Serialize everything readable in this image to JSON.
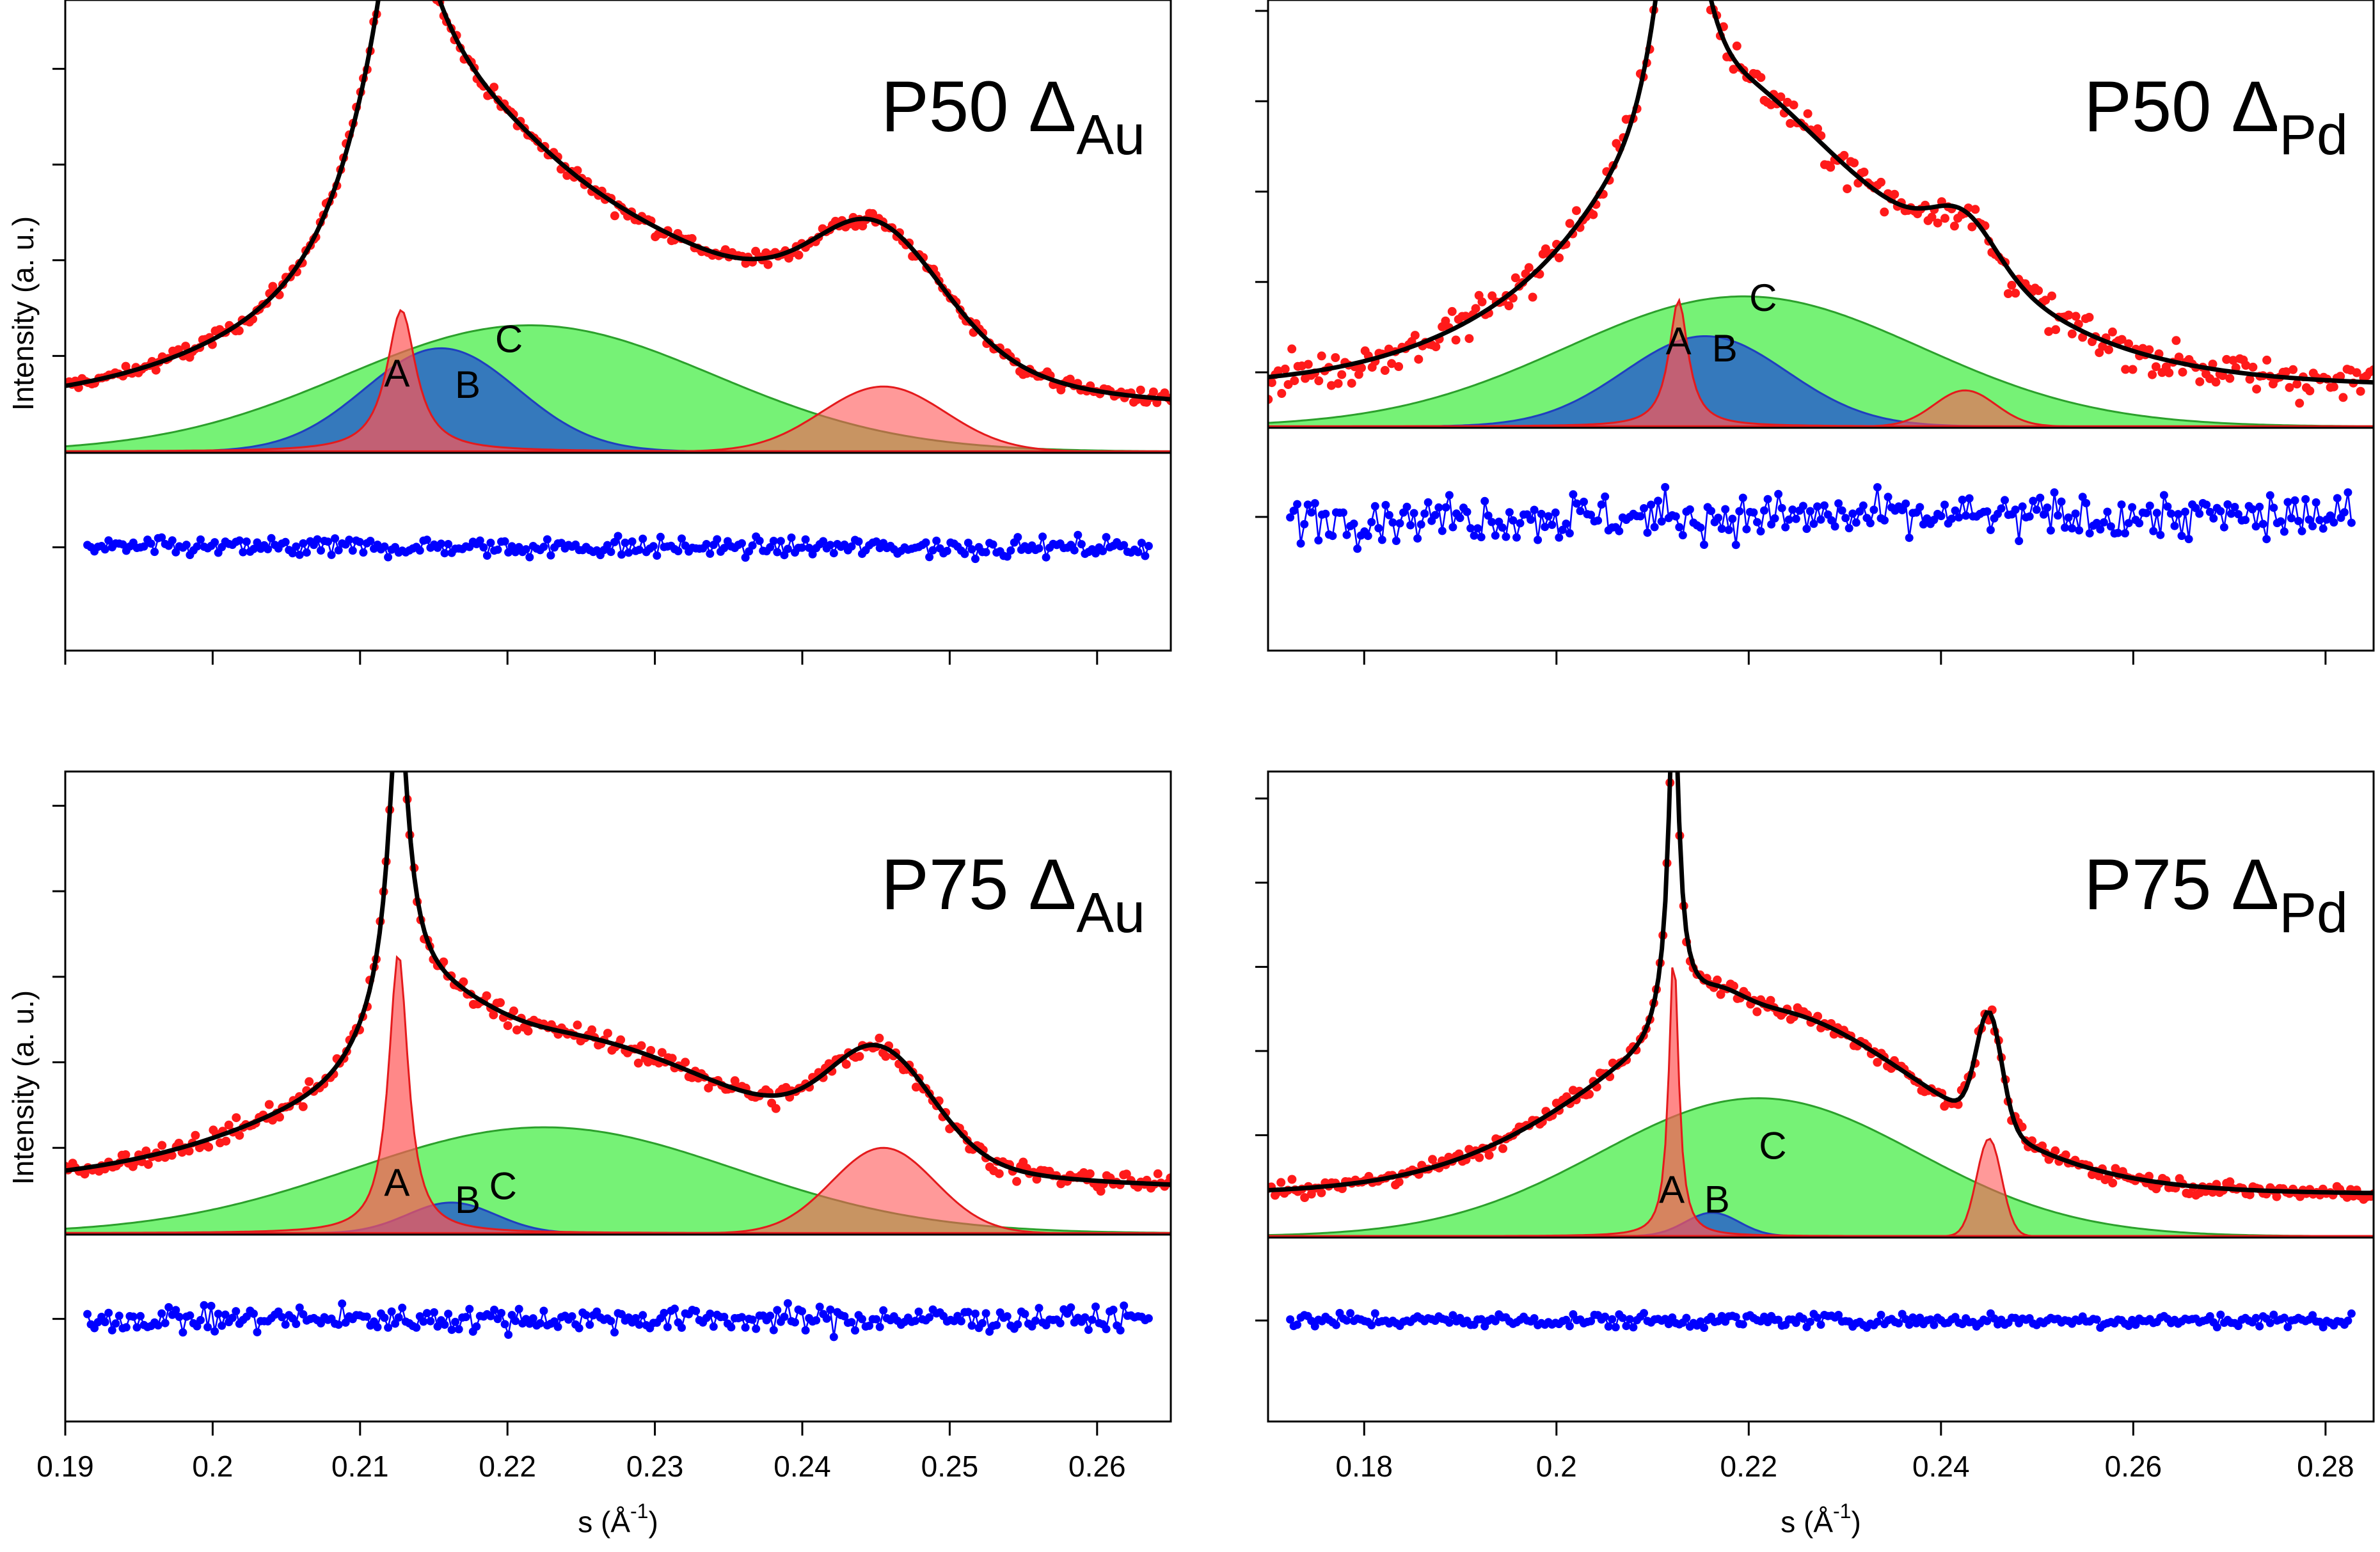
{
  "figure": {
    "ylabel": "Intensity (a. u.)",
    "xlabel_main": "s (Å",
    "xlabel_sup": "-1",
    "xlabel_close": ")"
  },
  "chart_data": [
    {
      "type": "line",
      "id": "p50-au",
      "title_main": "P50 Δ",
      "title_sub": "Au",
      "ylabel": "Intensity (a. u.)",
      "xlabel": "",
      "xlim": [
        0.19,
        0.265
      ],
      "ylim": [
        -0.52,
        1.18
      ],
      "xticks": [
        0.19,
        0.2,
        0.21,
        0.22,
        0.23,
        0.24,
        0.25,
        0.26
      ],
      "xtick_labels": [],
      "yticks": [
        -0.25,
        0.25,
        0.5,
        0.75,
        1.0
      ],
      "baseline": 0,
      "residual_offset": -0.25,
      "peaks": [
        {
          "label": "A",
          "shape": "lorentzian",
          "center": 0.2128,
          "width": 0.0012,
          "amp": 0.37,
          "color": "#ff5555",
          "line": "#e41a1c",
          "alpha": 0.7
        },
        {
          "label": "B",
          "shape": "gaussian",
          "center": 0.2155,
          "width": 0.0052,
          "amp": 0.27,
          "color": "#2f6bc4",
          "line": "#1f3fbf",
          "alpha": 0.9
        },
        {
          "label": "C",
          "shape": "gaussian",
          "center": 0.2215,
          "width": 0.0125,
          "amp": 0.33,
          "color": "#5ef05e",
          "line": "#2ca02c",
          "alpha": 0.85
        },
        {
          "label": "",
          "shape": "gaussian",
          "center": 0.2455,
          "width": 0.0042,
          "amp": 0.17,
          "color": "#ff5555",
          "line": "#e41a1c",
          "alpha": 0.6
        }
      ],
      "fit_extra": [
        {
          "center": 0.2128,
          "width": 0.0028,
          "amp": 0.42
        },
        {
          "center": 0.2215,
          "width": 0.018,
          "amp": 0.22
        },
        {
          "center": 0.2445,
          "width": 0.0065,
          "amp": 0.19
        }
      ],
      "background": 0.1,
      "noise": 0.018,
      "resid_noise": 0.02,
      "peak_labels": [
        {
          "text": "A",
          "x": 0.2125,
          "y": 0.17
        },
        {
          "text": "B",
          "x": 0.2173,
          "y": 0.14
        },
        {
          "text": "C",
          "x": 0.2201,
          "y": 0.26
        }
      ]
    },
    {
      "type": "line",
      "id": "p50-pd",
      "title_main": "P50 Δ",
      "title_sub": "Pd",
      "ylabel": "",
      "xlabel": "",
      "xlim": [
        0.17,
        0.285
      ],
      "ylim": [
        -0.62,
        1.18
      ],
      "xticks": [
        0.18,
        0.2,
        0.22,
        0.24,
        0.26,
        0.28
      ],
      "xtick_labels": [],
      "yticks": [
        -0.25,
        0.15,
        0.4,
        0.65,
        0.9,
        1.15
      ],
      "baseline": 0,
      "residual_offset": -0.25,
      "peaks": [
        {
          "label": "A",
          "shape": "lorentzian",
          "center": 0.2127,
          "width": 0.0012,
          "amp": 0.35,
          "color": "#ff5555",
          "line": "#e41a1c",
          "alpha": 0.7
        },
        {
          "label": "B",
          "shape": "gaussian",
          "center": 0.2155,
          "width": 0.0085,
          "amp": 0.25,
          "color": "#2f6bc4",
          "line": "#1f3fbf",
          "alpha": 0.9
        },
        {
          "label": "C",
          "shape": "gaussian",
          "center": 0.2195,
          "width": 0.0185,
          "amp": 0.36,
          "color": "#5ef05e",
          "line": "#2ca02c",
          "alpha": 0.85
        },
        {
          "label": "",
          "shape": "gaussian",
          "center": 0.2425,
          "width": 0.0032,
          "amp": 0.1,
          "color": "#ff5555",
          "line": "#e41a1c",
          "alpha": 0.6
        }
      ],
      "fit_extra": [
        {
          "center": 0.2128,
          "width": 0.0025,
          "amp": 0.55
        },
        {
          "center": 0.225,
          "width": 0.022,
          "amp": 0.25
        },
        {
          "center": 0.2425,
          "width": 0.006,
          "amp": 0.06
        }
      ],
      "background": 0.1,
      "noise": 0.045,
      "resid_noise": 0.055,
      "peak_labels": [
        {
          "text": "A",
          "x": 0.2127,
          "y": 0.2
        },
        {
          "text": "B",
          "x": 0.2175,
          "y": 0.18
        },
        {
          "text": "C",
          "x": 0.2215,
          "y": 0.32
        }
      ]
    },
    {
      "type": "line",
      "id": "p75-au",
      "title_main": "P75 Δ",
      "title_sub": "Au",
      "ylabel": "Intensity (a. u.)",
      "xlabel": "s (Å⁻¹)",
      "xlim": [
        0.19,
        0.265
      ],
      "ylim": [
        -0.55,
        1.35
      ],
      "xticks": [
        0.19,
        0.2,
        0.21,
        0.22,
        0.23,
        0.24,
        0.25,
        0.26
      ],
      "xtick_labels": [
        "0.19",
        "0.2",
        "0.21",
        "0.22",
        "0.23",
        "0.24",
        "0.25",
        "0.26"
      ],
      "yticks": [
        -0.25,
        0.25,
        0.5,
        0.75,
        1.0,
        1.25
      ],
      "baseline": 0,
      "residual_offset": -0.25,
      "peaks": [
        {
          "label": "A",
          "shape": "lorentzian",
          "center": 0.2126,
          "width": 0.0008,
          "amp": 0.82,
          "color": "#ff5555",
          "line": "#e41a1c",
          "alpha": 0.7
        },
        {
          "label": "B",
          "shape": "gaussian",
          "center": 0.2162,
          "width": 0.003,
          "amp": 0.09,
          "color": "#2f6bc4",
          "line": "#1f3fbf",
          "alpha": 0.9
        },
        {
          "label": "C",
          "shape": "gaussian",
          "center": 0.2225,
          "width": 0.013,
          "amp": 0.31,
          "color": "#5ef05e",
          "line": "#2ca02c",
          "alpha": 0.85
        },
        {
          "label": "",
          "shape": "gaussian",
          "center": 0.2455,
          "width": 0.0035,
          "amp": 0.25,
          "color": "#ff5555",
          "line": "#e41a1c",
          "alpha": 0.6
        }
      ],
      "fit_extra": [
        {
          "center": 0.2128,
          "width": 0.0025,
          "amp": 0.2
        },
        {
          "center": 0.22,
          "width": 0.02,
          "amp": 0.15
        },
        {
          "center": 0.2445,
          "width": 0.004,
          "amp": 0.05
        }
      ],
      "background": 0.12,
      "noise": 0.025,
      "resid_noise": 0.03,
      "peak_labels": [
        {
          "text": "A",
          "x": 0.2125,
          "y": 0.11
        },
        {
          "text": "B",
          "x": 0.2173,
          "y": 0.06
        },
        {
          "text": "C",
          "x": 0.2197,
          "y": 0.1
        }
      ]
    },
    {
      "type": "line",
      "id": "p75-pd",
      "title_main": "P75 Δ",
      "title_sub": "Pd",
      "ylabel": "",
      "xlabel": "s (Å⁻¹)",
      "xlim": [
        0.17,
        0.285
      ],
      "ylim": [
        -0.55,
        1.38
      ],
      "xticks": [
        0.18,
        0.2,
        0.22,
        0.24,
        0.26,
        0.28
      ],
      "xtick_labels": [
        "0.18",
        "0.2",
        "0.22",
        "0.24",
        "0.26",
        "0.28"
      ],
      "yticks": [
        -0.25,
        0.3,
        0.55,
        0.8,
        1.05,
        1.3
      ],
      "baseline": 0,
      "residual_offset": -0.25,
      "peaks": [
        {
          "label": "A",
          "shape": "lorentzian",
          "center": 0.2122,
          "width": 0.0006,
          "amp": 0.85,
          "color": "#ff5555",
          "line": "#e41a1c",
          "alpha": 0.7
        },
        {
          "label": "B",
          "shape": "gaussian",
          "center": 0.2162,
          "width": 0.0028,
          "amp": 0.07,
          "color": "#2f6bc4",
          "line": "#1f3fbf",
          "alpha": 0.9
        },
        {
          "label": "C",
          "shape": "gaussian",
          "center": 0.221,
          "width": 0.0165,
          "amp": 0.41,
          "color": "#5ef05e",
          "line": "#2ca02c",
          "alpha": 0.85
        },
        {
          "label": "",
          "shape": "gaussian",
          "center": 0.245,
          "width": 0.0013,
          "amp": 0.29,
          "color": "#ff5555",
          "line": "#e41a1c",
          "alpha": 0.6
        }
      ],
      "fit_extra": [
        {
          "center": 0.2122,
          "width": 0.0015,
          "amp": 0.16
        },
        {
          "center": 0.2215,
          "width": 0.02,
          "amp": 0.14
        },
        {
          "center": 0.245,
          "width": 0.0018,
          "amp": 0.05
        }
      ],
      "background": 0.12,
      "noise": 0.02,
      "resid_noise": 0.018,
      "peak_labels": [
        {
          "text": "A",
          "x": 0.212,
          "y": 0.1
        },
        {
          "text": "B",
          "x": 0.2167,
          "y": 0.07
        },
        {
          "text": "C",
          "x": 0.2225,
          "y": 0.23
        }
      ]
    }
  ]
}
